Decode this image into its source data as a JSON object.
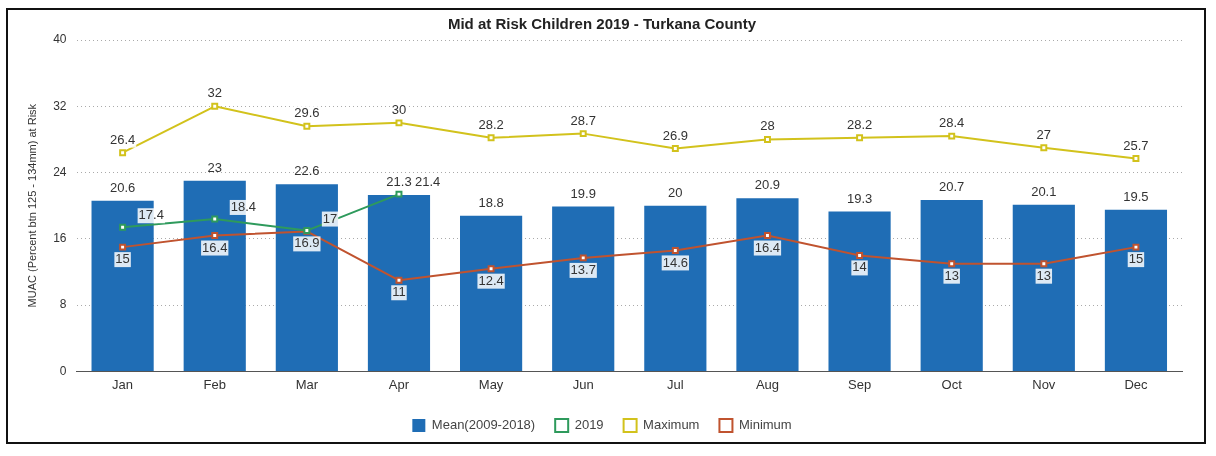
{
  "chart_data": {
    "type": "bar",
    "title": "Mid at Risk Children 2019 - Turkana County",
    "ylabel": "MUAC (Percent btn 125 - 134mm) at Risk",
    "categories": [
      "Jan",
      "Feb",
      "Mar",
      "Apr",
      "May",
      "Jun",
      "Jul",
      "Aug",
      "Sep",
      "Oct",
      "Nov",
      "Dec"
    ],
    "series": [
      {
        "name": "Mean(2009-2018)",
        "color": "#1f6db5",
        "values": [
          20.6,
          23,
          22.6,
          21.3,
          18.8,
          19.9,
          20,
          20.9,
          19.3,
          20.7,
          20.1,
          19.5
        ]
      },
      {
        "name": "2019",
        "type": "line",
        "color": "#2e9a5c",
        "values": [
          17.4,
          18.4,
          17,
          21.4,
          null,
          null,
          null,
          null,
          null,
          null,
          null,
          null
        ]
      },
      {
        "name": "Maximum",
        "type": "line",
        "color": "#d2c21c",
        "values": [
          26.4,
          32,
          29.6,
          30,
          28.2,
          28.7,
          26.9,
          28,
          28.2,
          28.4,
          27,
          25.7
        ]
      },
      {
        "name": "Minimum",
        "type": "line",
        "color": "#c0532f",
        "values": [
          15,
          16.4,
          16.9,
          11,
          12.4,
          13.7,
          14.6,
          16.4,
          14,
          13,
          13,
          15
        ]
      }
    ],
    "ylim": [
      0,
      40
    ],
    "yticks": [
      0,
      8,
      16,
      24,
      32,
      40
    ],
    "grid": "y",
    "legend": "bottom",
    "marker": "square",
    "line_style": "solid",
    "data_labels": true
  }
}
